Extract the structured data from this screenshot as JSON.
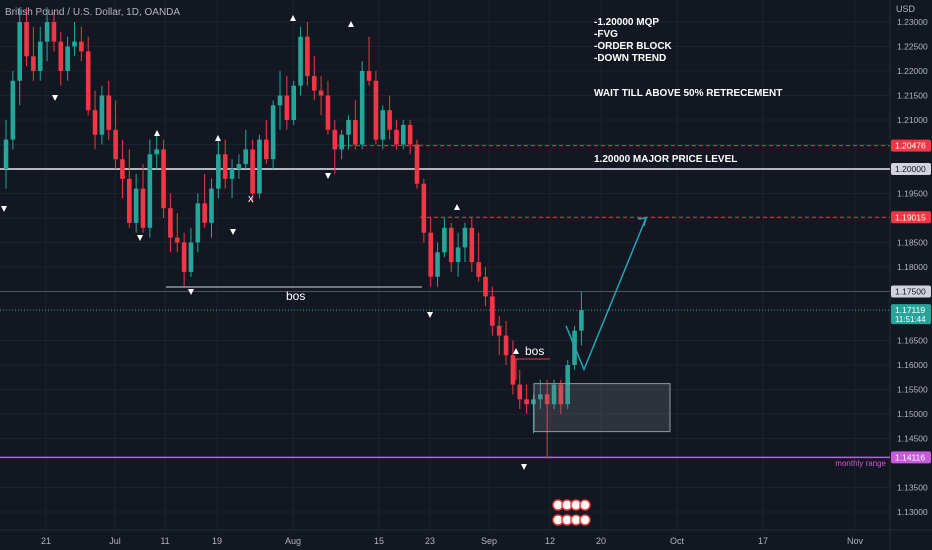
{
  "header": {
    "symbol_title": "British Pound / U.S. Dollar, 1D, OANDA",
    "currency": "USD"
  },
  "notes": [
    "-1.20000 MQP",
    "-FVG",
    "-ORDER BLOCK",
    "-DOWN TREND"
  ],
  "wait_note": "WAIT TILL ABOVE 50% RETRECEMENT",
  "levels": {
    "major": {
      "value": 1.2,
      "label": "1.20000",
      "text": "1.20000 MAJOR PRICE LEVEL"
    },
    "upper_dashed": {
      "value": 1.20476,
      "label": "1.20476"
    },
    "target_dashed": {
      "value": 1.19015,
      "label": "1.19015"
    },
    "bos_level": {
      "value": 1.175,
      "label": "1.17500"
    },
    "current": {
      "value": 1.17119,
      "label": "1.17119",
      "countdown": "11:51:44"
    },
    "monthly": {
      "value": 1.14116,
      "label": "1.14116",
      "text": "monthly range"
    }
  },
  "annotations": {
    "bos_left": "bos",
    "bos_right": "bos",
    "x_mark": "x"
  },
  "chart_data": {
    "type": "candlestick",
    "x_labels": [
      "21",
      "Jul",
      "11",
      "19",
      "Aug",
      "15",
      "23",
      "Sep",
      "12",
      "20",
      "Oct",
      "17",
      "Nov"
    ],
    "y_ticks": [
      "1.23000",
      "1.22500",
      "1.22000",
      "1.21500",
      "1.21000",
      "1.20500",
      "1.19500",
      "1.19000",
      "1.18500",
      "1.18000",
      "1.16500",
      "1.16000",
      "1.15500",
      "1.15000",
      "1.14500",
      "1.13500",
      "1.13000"
    ],
    "ylim": [
      1.128,
      1.2338
    ],
    "candles": [
      [
        1.2,
        1.21,
        1.196,
        1.206
      ],
      [
        1.206,
        1.22,
        1.204,
        1.218
      ],
      [
        1.218,
        1.233,
        1.213,
        1.23
      ],
      [
        1.23,
        1.233,
        1.221,
        1.223
      ],
      [
        1.223,
        1.229,
        1.218,
        1.22
      ],
      [
        1.22,
        1.229,
        1.218,
        1.226
      ],
      [
        1.226,
        1.233,
        1.222,
        1.23
      ],
      [
        1.23,
        1.232,
        1.224,
        1.226
      ],
      [
        1.226,
        1.228,
        1.217,
        1.22
      ],
      [
        1.22,
        1.227,
        1.218,
        1.225
      ],
      [
        1.225,
        1.23,
        1.223,
        1.226
      ],
      [
        1.226,
        1.229,
        1.222,
        1.224
      ],
      [
        1.224,
        1.227,
        1.211,
        1.212
      ],
      [
        1.212,
        1.216,
        1.204,
        1.207
      ],
      [
        1.207,
        1.217,
        1.205,
        1.215
      ],
      [
        1.215,
        1.218,
        1.206,
        1.208
      ],
      [
        1.208,
        1.214,
        1.2,
        1.202
      ],
      [
        1.202,
        1.206,
        1.194,
        1.198
      ],
      [
        1.198,
        1.204,
        1.188,
        1.189
      ],
      [
        1.189,
        1.199,
        1.187,
        1.196
      ],
      [
        1.196,
        1.201,
        1.187,
        1.188
      ],
      [
        1.188,
        1.206,
        1.186,
        1.203
      ],
      [
        1.203,
        1.207,
        1.2,
        1.204
      ],
      [
        1.204,
        1.206,
        1.19,
        1.192
      ],
      [
        1.192,
        1.195,
        1.183,
        1.186
      ],
      [
        1.186,
        1.191,
        1.183,
        1.185
      ],
      [
        1.185,
        1.187,
        1.176,
        1.179
      ],
      [
        1.179,
        1.188,
        1.178,
        1.185
      ],
      [
        1.185,
        1.195,
        1.183,
        1.193
      ],
      [
        1.193,
        1.199,
        1.188,
        1.189
      ],
      [
        1.189,
        1.198,
        1.186,
        1.196
      ],
      [
        1.196,
        1.206,
        1.194,
        1.203
      ],
      [
        1.203,
        1.206,
        1.196,
        1.198
      ],
      [
        1.198,
        1.202,
        1.194,
        1.2
      ],
      [
        1.2,
        1.203,
        1.198,
        1.201
      ],
      [
        1.201,
        1.208,
        1.2,
        1.204
      ],
      [
        1.204,
        1.206,
        1.193,
        1.195
      ],
      [
        1.195,
        1.207,
        1.194,
        1.206
      ],
      [
        1.206,
        1.21,
        1.201,
        1.202
      ],
      [
        1.202,
        1.214,
        1.2,
        1.213
      ],
      [
        1.213,
        1.22,
        1.208,
        1.215
      ],
      [
        1.215,
        1.219,
        1.208,
        1.21
      ],
      [
        1.21,
        1.218,
        1.209,
        1.217
      ],
      [
        1.217,
        1.229,
        1.215,
        1.227
      ],
      [
        1.227,
        1.23,
        1.217,
        1.219
      ],
      [
        1.219,
        1.223,
        1.214,
        1.216
      ],
      [
        1.216,
        1.219,
        1.211,
        1.215
      ],
      [
        1.215,
        1.218,
        1.207,
        1.208
      ],
      [
        1.208,
        1.21,
        1.199,
        1.204
      ],
      [
        1.204,
        1.208,
        1.202,
        1.207
      ],
      [
        1.207,
        1.211,
        1.204,
        1.21
      ],
      [
        1.21,
        1.214,
        1.204,
        1.205
      ],
      [
        1.205,
        1.222,
        1.204,
        1.22
      ],
      [
        1.22,
        1.227,
        1.217,
        1.218
      ],
      [
        1.218,
        1.22,
        1.205,
        1.206
      ],
      [
        1.206,
        1.213,
        1.204,
        1.212
      ],
      [
        1.212,
        1.215,
        1.206,
        1.208
      ],
      [
        1.208,
        1.21,
        1.204,
        1.205
      ],
      [
        1.205,
        1.21,
        1.204,
        1.209
      ],
      [
        1.209,
        1.21,
        1.203,
        1.205
      ],
      [
        1.205,
        1.206,
        1.196,
        1.197
      ],
      [
        1.197,
        1.198,
        1.185,
        1.187
      ],
      [
        1.187,
        1.19,
        1.176,
        1.178
      ],
      [
        1.178,
        1.185,
        1.176,
        1.183
      ],
      [
        1.183,
        1.19,
        1.182,
        1.188
      ],
      [
        1.188,
        1.189,
        1.179,
        1.181
      ],
      [
        1.181,
        1.187,
        1.178,
        1.184
      ],
      [
        1.184,
        1.189,
        1.181,
        1.188
      ],
      [
        1.188,
        1.19,
        1.179,
        1.181
      ],
      [
        1.181,
        1.187,
        1.177,
        1.178
      ],
      [
        1.178,
        1.18,
        1.172,
        1.174
      ],
      [
        1.174,
        1.176,
        1.166,
        1.168
      ],
      [
        1.168,
        1.17,
        1.162,
        1.166
      ],
      [
        1.166,
        1.169,
        1.16,
        1.162
      ],
      [
        1.162,
        1.165,
        1.154,
        1.156
      ],
      [
        1.156,
        1.159,
        1.151,
        1.153
      ],
      [
        1.153,
        1.156,
        1.15,
        1.152
      ],
      [
        1.152,
        1.154,
        1.146,
        1.153
      ],
      [
        1.153,
        1.157,
        1.151,
        1.154
      ],
      [
        1.154,
        1.157,
        1.141,
        1.152
      ],
      [
        1.152,
        1.157,
        1.151,
        1.156
      ],
      [
        1.156,
        1.157,
        1.15,
        1.152
      ],
      [
        1.152,
        1.161,
        1.151,
        1.16
      ],
      [
        1.16,
        1.168,
        1.159,
        1.167
      ],
      [
        1.167,
        1.175,
        1.164,
        1.1712
      ]
    ],
    "drawings": {
      "fvg_zone": {
        "top": 1.1562,
        "bottom": 1.1464
      },
      "projection_path": [
        [
          1.168,
          1.1591
        ],
        [
          1.1591,
          1.19
        ]
      ]
    }
  }
}
